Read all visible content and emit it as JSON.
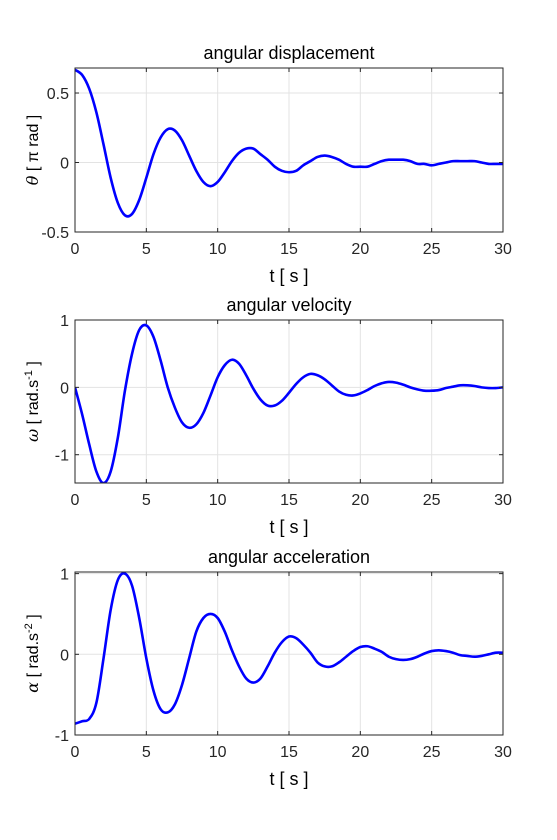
{
  "chart_data": [
    {
      "type": "line",
      "title": "angular displacement",
      "xlabel": "t   [ s ]",
      "ylabel": {
        "symbol": "θ",
        "text": " [ π rad ]"
      },
      "xlim": [
        0,
        30
      ],
      "ylim": [
        -0.5,
        0.68
      ],
      "xticks": [
        "0",
        "5",
        "10",
        "15",
        "20",
        "25",
        "30"
      ],
      "xtick_values": [
        0,
        5,
        10,
        15,
        20,
        25,
        30
      ],
      "yticks": [
        "-0.5",
        "0",
        "0.5"
      ],
      "ytick_values": [
        -0.5,
        0,
        0.5
      ],
      "grid": true,
      "line_color": "#0000ff",
      "series": [
        {
          "x": [
            0,
            0.5,
            1,
            1.5,
            2,
            2.5,
            3,
            3.5,
            4,
            4.5,
            5,
            5.5,
            6,
            6.5,
            7,
            7.5,
            8,
            8.5,
            9,
            9.5,
            10,
            10.5,
            11,
            11.5,
            12,
            12.5,
            13,
            13.5,
            14,
            14.5,
            15,
            15.5,
            16,
            16.5,
            17,
            17.5,
            18,
            18.5,
            19,
            19.5,
            20,
            20.5,
            21,
            21.5,
            22,
            22.5,
            23,
            23.5,
            24,
            24.5,
            25,
            25.5,
            26,
            26.5,
            27,
            27.5,
            28,
            28.5,
            29,
            29.5,
            30
          ],
          "y": [
            0.667,
            0.63,
            0.53,
            0.36,
            0.13,
            -0.11,
            -0.29,
            -0.38,
            -0.37,
            -0.27,
            -0.11,
            0.06,
            0.18,
            0.24,
            0.23,
            0.16,
            0.05,
            -0.06,
            -0.14,
            -0.17,
            -0.14,
            -0.07,
            0.01,
            0.07,
            0.1,
            0.1,
            0.06,
            0.02,
            -0.03,
            -0.06,
            -0.07,
            -0.06,
            -0.02,
            0.01,
            0.04,
            0.05,
            0.04,
            0.02,
            -0.01,
            -0.03,
            -0.03,
            -0.03,
            -0.01,
            0.01,
            0.02,
            0.02,
            0.02,
            0.01,
            -0.01,
            -0.01,
            -0.02,
            -0.01,
            0.0,
            0.01,
            0.01,
            0.01,
            0.01,
            0.0,
            -0.01,
            -0.01,
            -0.01
          ]
        }
      ]
    },
    {
      "type": "line",
      "title": "angular velocity",
      "xlabel": "t  [ s ]",
      "ylabel": {
        "symbol": "ω",
        "text": " [ rad.s",
        "sup": "-1",
        "end": " ]"
      },
      "xlim": [
        0,
        30
      ],
      "ylim": [
        -1.42,
        1.0
      ],
      "xticks": [
        "0",
        "5",
        "10",
        "15",
        "20",
        "25",
        "30"
      ],
      "xtick_values": [
        0,
        5,
        10,
        15,
        20,
        25,
        30
      ],
      "yticks": [
        "-1",
        "0",
        "1"
      ],
      "ytick_values": [
        -1,
        0,
        1
      ],
      "grid": true,
      "line_color": "#0000ff",
      "series": [
        {
          "x": [
            0,
            0.5,
            1,
            1.5,
            2,
            2.5,
            3,
            3.5,
            4,
            4.5,
            5,
            5.5,
            6,
            6.5,
            7,
            7.5,
            8,
            8.5,
            9,
            9.5,
            10,
            10.5,
            11,
            11.5,
            12,
            12.5,
            13,
            13.5,
            14,
            14.5,
            15,
            15.5,
            16,
            16.5,
            17,
            17.5,
            18,
            18.5,
            19,
            19.5,
            20,
            20.5,
            21,
            21.5,
            22,
            22.5,
            23,
            23.5,
            24,
            24.5,
            25,
            25.5,
            26,
            26.5,
            27,
            27.5,
            28,
            28.5,
            29,
            29.5,
            30
          ],
          "y": [
            0.0,
            -0.4,
            -0.85,
            -1.25,
            -1.42,
            -1.25,
            -0.75,
            -0.05,
            0.5,
            0.85,
            0.92,
            0.75,
            0.4,
            0.0,
            -0.3,
            -0.52,
            -0.6,
            -0.55,
            -0.38,
            -0.12,
            0.15,
            0.33,
            0.41,
            0.35,
            0.18,
            -0.02,
            -0.18,
            -0.27,
            -0.27,
            -0.2,
            -0.08,
            0.05,
            0.15,
            0.2,
            0.18,
            0.12,
            0.03,
            -0.06,
            -0.11,
            -0.12,
            -0.09,
            -0.04,
            0.02,
            0.06,
            0.08,
            0.07,
            0.04,
            0.0,
            -0.03,
            -0.05,
            -0.05,
            -0.04,
            -0.01,
            0.01,
            0.03,
            0.03,
            0.02,
            0.0,
            -0.01,
            -0.01,
            0.0
          ]
        }
      ]
    },
    {
      "type": "line",
      "title": "angular acceleration",
      "xlabel": "t  [ s ]",
      "ylabel": {
        "symbol": "α",
        "text": " [ rad.s",
        "sup": "-2",
        "end": " ]"
      },
      "xlim": [
        0,
        30
      ],
      "ylim": [
        -1.0,
        1.02
      ],
      "xticks": [
        "0",
        "5",
        "10",
        "15",
        "20",
        "25",
        "30"
      ],
      "xtick_values": [
        0,
        5,
        10,
        15,
        20,
        25,
        30
      ],
      "yticks": [
        "-1",
        "0",
        "1"
      ],
      "ytick_values": [
        -1,
        0,
        1
      ],
      "grid": true,
      "line_color": "#0000ff",
      "series": [
        {
          "x": [
            0,
            0.5,
            1,
            1.5,
            2,
            2.5,
            3,
            3.5,
            4,
            4.5,
            5,
            5.5,
            6,
            6.5,
            7,
            7.5,
            8,
            8.5,
            9,
            9.5,
            10,
            10.5,
            11,
            11.5,
            12,
            12.5,
            13,
            13.5,
            14,
            14.5,
            15,
            15.5,
            16,
            16.5,
            17,
            17.5,
            18,
            18.5,
            19,
            19.5,
            20,
            20.5,
            21,
            21.5,
            22,
            22.5,
            23,
            23.5,
            24,
            24.5,
            25,
            25.5,
            26,
            26.5,
            27,
            27.5,
            28,
            28.5,
            29,
            29.5,
            30
          ],
          "y": [
            -0.86,
            -0.83,
            -0.8,
            -0.6,
            -0.05,
            0.55,
            0.92,
            1.0,
            0.85,
            0.45,
            -0.05,
            -0.45,
            -0.68,
            -0.72,
            -0.62,
            -0.38,
            -0.05,
            0.28,
            0.45,
            0.5,
            0.45,
            0.28,
            0.05,
            -0.15,
            -0.3,
            -0.35,
            -0.3,
            -0.15,
            0.02,
            0.15,
            0.22,
            0.2,
            0.12,
            0.02,
            -0.1,
            -0.15,
            -0.15,
            -0.1,
            -0.03,
            0.04,
            0.09,
            0.1,
            0.07,
            0.03,
            -0.03,
            -0.06,
            -0.07,
            -0.06,
            -0.03,
            0.01,
            0.04,
            0.05,
            0.04,
            0.02,
            -0.01,
            -0.02,
            -0.03,
            -0.02,
            0.0,
            0.02,
            0.02
          ]
        }
      ]
    }
  ]
}
